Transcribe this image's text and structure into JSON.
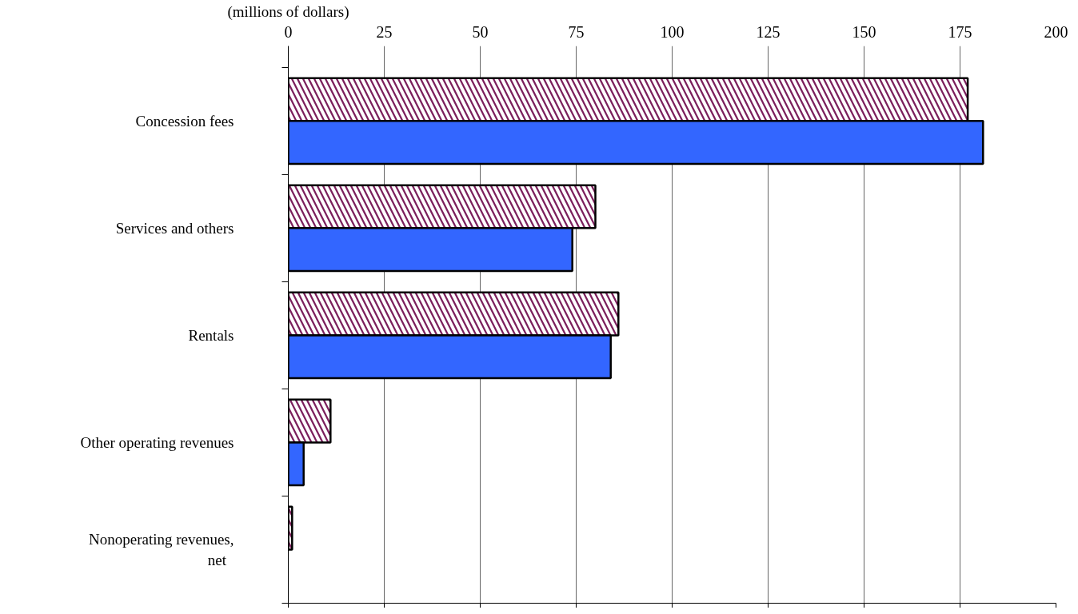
{
  "chart_data": {
    "type": "bar",
    "orientation": "horizontal",
    "xlabel": "(millions of dollars)",
    "categories": [
      "Concession fees",
      "Services and others",
      "Rentals",
      "Other operating revenues",
      "Nonoperating revenues,\n  net"
    ],
    "series": [
      {
        "color": "#7b1f5c",
        "values": [
          177,
          80,
          86,
          11,
          1
        ]
      },
      {
        "color": "#3366ff",
        "values": [
          181,
          74,
          84,
          4,
          null
        ]
      }
    ],
    "xlim": [
      0,
      200
    ],
    "xticks": [
      0,
      25,
      50,
      75,
      100,
      125,
      150,
      175,
      200
    ],
    "grid": "x"
  }
}
